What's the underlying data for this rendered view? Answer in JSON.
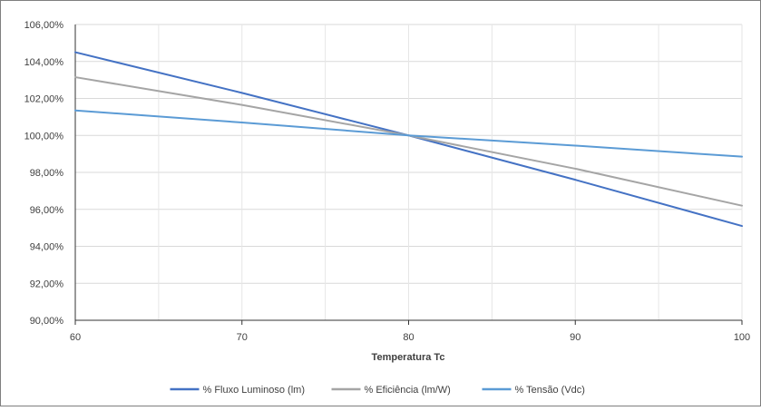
{
  "chart_data": {
    "type": "line",
    "title": "",
    "xlabel": "Temperatura Tc",
    "ylabel": "",
    "xlim": [
      60,
      100
    ],
    "ylim": [
      90,
      106
    ],
    "x_ticks": [
      60,
      70,
      80,
      90,
      100
    ],
    "x_tick_labels": [
      "60",
      "70",
      "80",
      "90",
      "100"
    ],
    "x_minor_grid": [
      65,
      75,
      85,
      95
    ],
    "y_ticks": [
      90,
      92,
      94,
      96,
      98,
      100,
      102,
      104,
      106
    ],
    "y_tick_labels": [
      "90,00%",
      "92,00%",
      "94,00%",
      "96,00%",
      "98,00%",
      "100,00%",
      "102,00%",
      "104,00%",
      "106,00%"
    ],
    "grid": true,
    "legend_position": "bottom",
    "series": [
      {
        "name": "% Fluxo Luminoso (lm)",
        "color": "#4472C4",
        "x": [
          60,
          70,
          80,
          90,
          100
        ],
        "values": [
          104.5,
          102.3,
          100.0,
          97.6,
          95.1
        ]
      },
      {
        "name": "% Eficiência (lm/W)",
        "color": "#A5A5A5",
        "x": [
          60,
          70,
          80,
          90,
          100
        ],
        "values": [
          103.15,
          101.65,
          100.0,
          98.2,
          96.2
        ]
      },
      {
        "name": "% Tensão (Vdc)",
        "color": "#5B9BD5",
        "x": [
          60,
          70,
          80,
          90,
          100
        ],
        "values": [
          101.35,
          100.7,
          100.0,
          99.45,
          98.85
        ]
      }
    ]
  }
}
